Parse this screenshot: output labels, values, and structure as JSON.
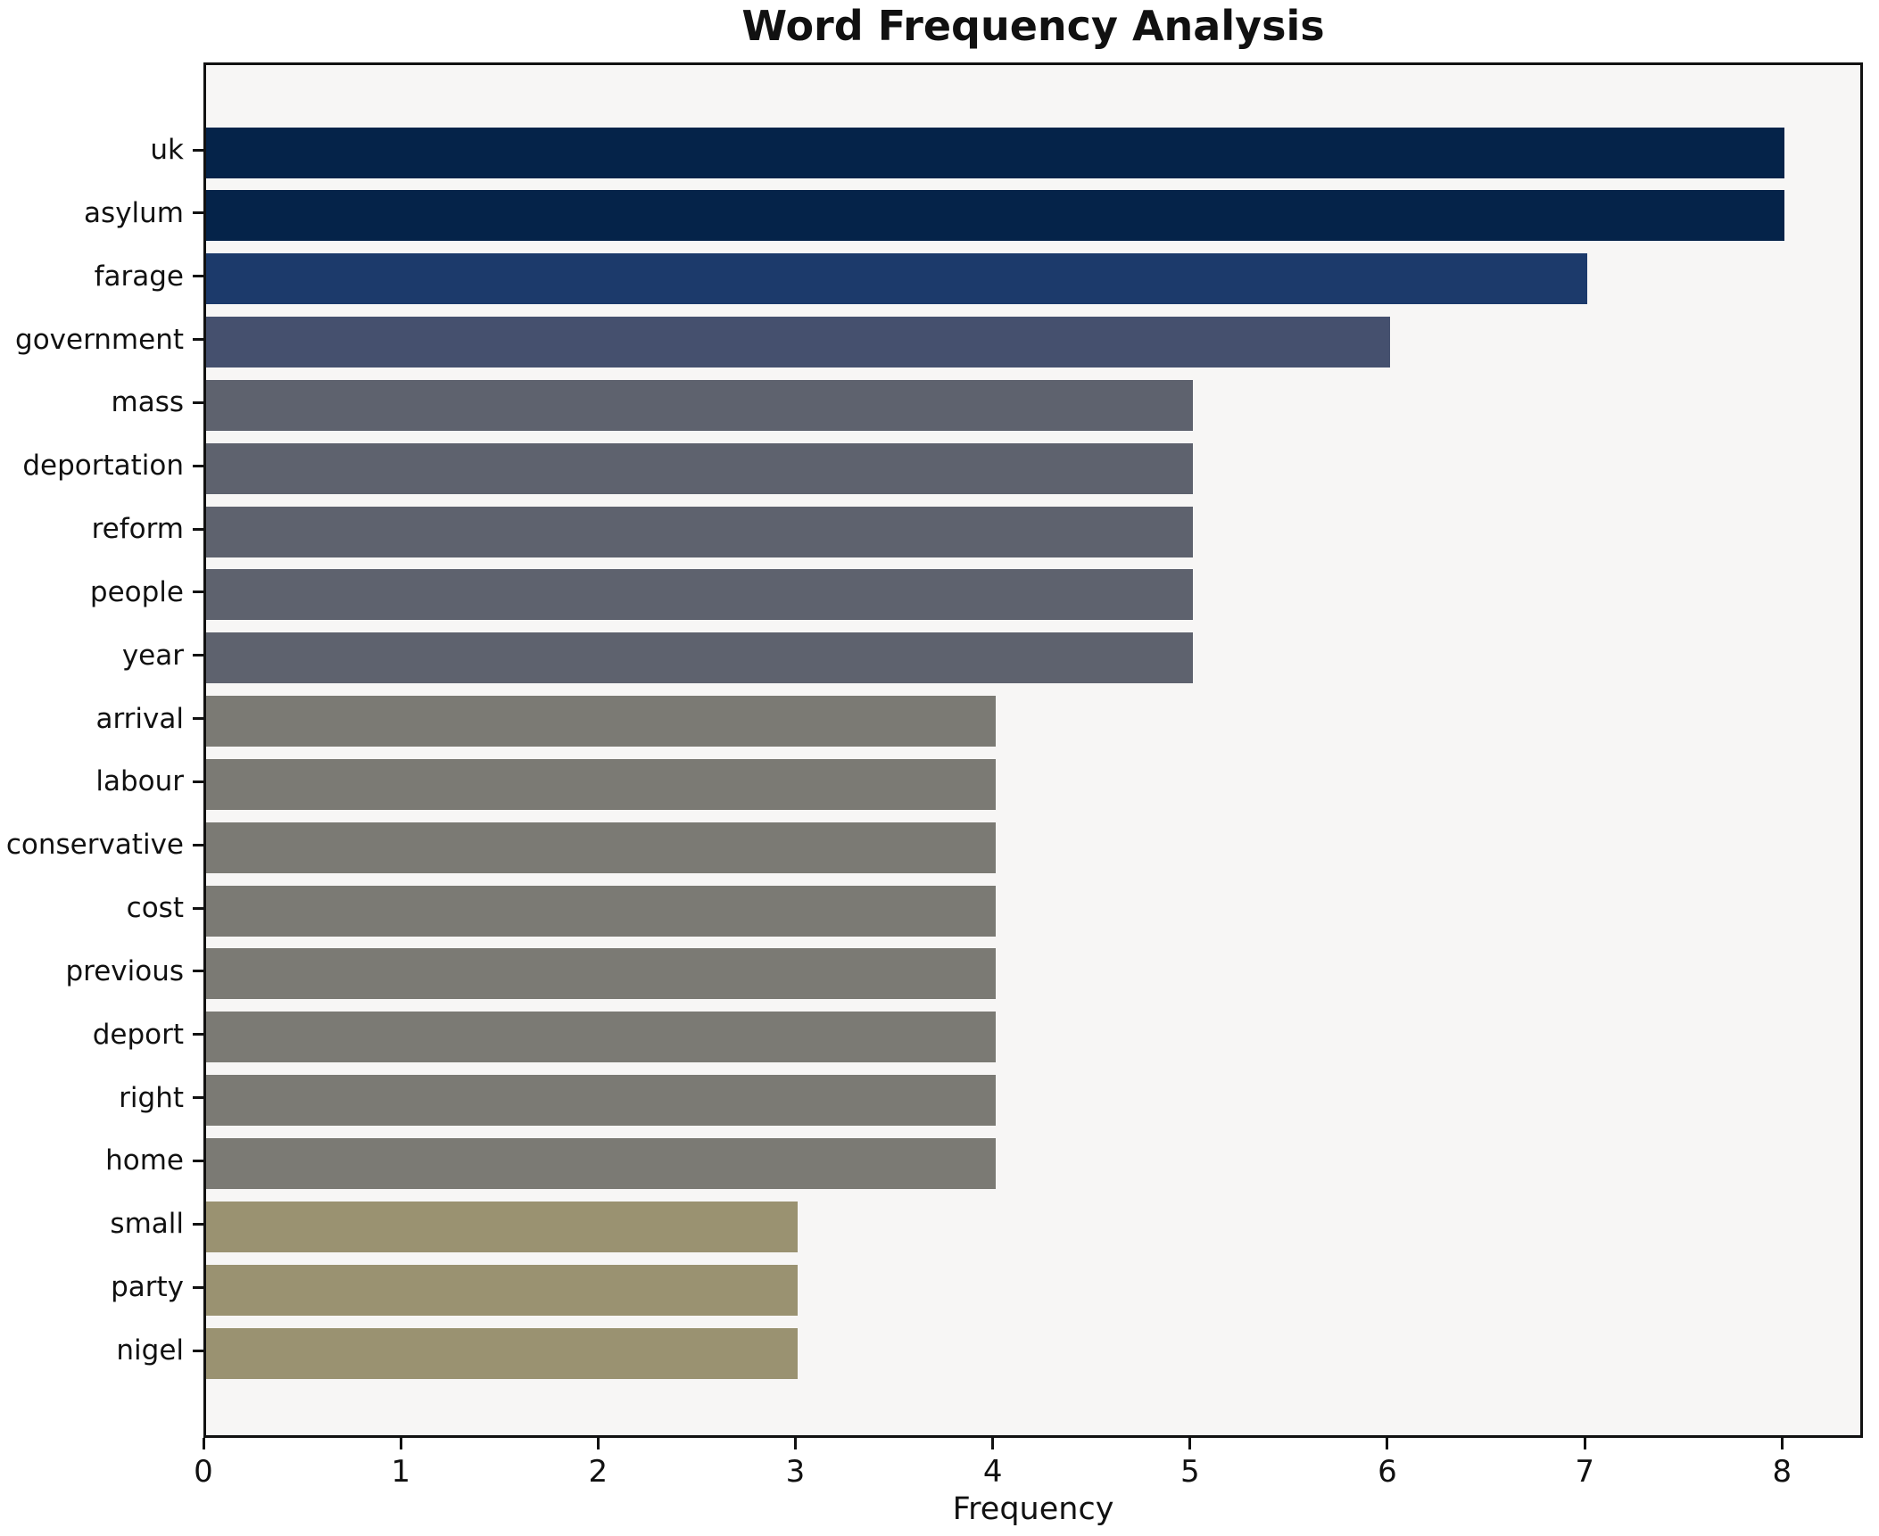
{
  "chart_data": {
    "type": "bar",
    "orientation": "horizontal",
    "title": "Word Frequency Analysis",
    "xlabel": "Frequency",
    "ylabel": "",
    "categories": [
      "uk",
      "asylum",
      "farage",
      "government",
      "mass",
      "deportation",
      "reform",
      "people",
      "year",
      "arrival",
      "labour",
      "conservative",
      "cost",
      "previous",
      "deport",
      "right",
      "home",
      "small",
      "party",
      "nigel"
    ],
    "values": [
      8,
      8,
      7,
      6,
      5,
      5,
      5,
      5,
      5,
      4,
      4,
      4,
      4,
      4,
      4,
      4,
      4,
      3,
      3,
      3
    ],
    "x_ticks": [
      0,
      1,
      2,
      3,
      4,
      5,
      6,
      7,
      8
    ],
    "xlim": [
      0,
      8.41
    ],
    "grid": false,
    "legend_position": "none",
    "colors_by_value": {
      "8": "#052349",
      "7": "#1c3a6b",
      "6": "#45506e",
      "5": "#5e626e",
      "4": "#7b7a74",
      "3": "#9a9271"
    },
    "plot_background": "#f7f6f5",
    "figure_background": "#ffffff",
    "spine_color": "#111111"
  }
}
